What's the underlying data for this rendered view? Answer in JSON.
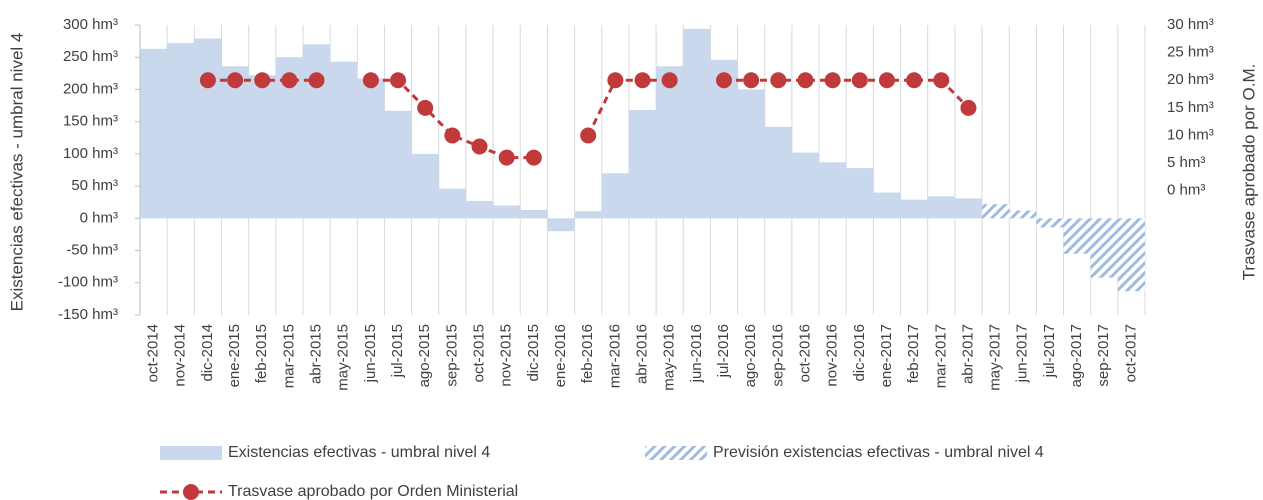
{
  "chart_data": {
    "type": "bar_line",
    "y_label": "Existencias efectivas - umbral nivel 4",
    "y2_label": "Trasvase aprobado por O.M.",
    "categories": [
      "oct-2014",
      "nov-2014",
      "dic-2014",
      "ene-2015",
      "feb-2015",
      "mar-2015",
      "abr-2015",
      "may-2015",
      "jun-2015",
      "jul-2015",
      "ago-2015",
      "sep-2015",
      "oct-2015",
      "nov-2015",
      "dic-2015",
      "ene-2016",
      "feb-2016",
      "mar-2016",
      "abr-2016",
      "may-2016",
      "jun-2016",
      "jul-2016",
      "ago-2016",
      "sep-2016",
      "oct-2016",
      "nov-2016",
      "dic-2016",
      "ene-2017",
      "feb-2017",
      "mar-2017",
      "abr-2017",
      "may-2017",
      "jun-2017",
      "jul-2017",
      "ago-2017",
      "sep-2017",
      "oct-2017"
    ],
    "series": [
      {
        "name": "Existencias efectivas - umbral nivel 4",
        "color": "#c9d8ec",
        "style": "solid",
        "values": [
          263,
          272,
          279,
          236,
          222,
          250,
          270,
          243,
          217,
          167,
          100,
          46,
          27,
          20,
          13,
          -20,
          11,
          70,
          168,
          236,
          294,
          246,
          200,
          142,
          102,
          87,
          78,
          40,
          29,
          34,
          31,
          null,
          null,
          null,
          null,
          null,
          null
        ]
      },
      {
        "name": "Previsión existencias efectivas - umbral nivel 4",
        "color": "#9fbbdf",
        "style": "hatched",
        "values": [
          null,
          null,
          null,
          null,
          null,
          null,
          null,
          null,
          null,
          null,
          null,
          null,
          null,
          null,
          null,
          null,
          null,
          null,
          null,
          null,
          null,
          null,
          null,
          null,
          null,
          null,
          null,
          null,
          null,
          null,
          null,
          22,
          12,
          -14,
          -55,
          -92,
          -113
        ]
      },
      {
        "name": "Trasvase aprobado por Orden Ministerial",
        "color": "#c0393b",
        "type": "line",
        "axis": "y2",
        "values": [
          null,
          null,
          20,
          20,
          20,
          20,
          20,
          null,
          20,
          20,
          15,
          10,
          8,
          6,
          6,
          null,
          10,
          20,
          20,
          20,
          null,
          20,
          20,
          20,
          20,
          20,
          20,
          20,
          20,
          20,
          15,
          null,
          null,
          null,
          null,
          null,
          null
        ]
      }
    ],
    "ylim": [
      -150,
      300
    ],
    "yticks": [
      {
        "value": -150,
        "label": "-150 hm³"
      },
      {
        "value": -100,
        "label": "-100 hm³"
      },
      {
        "value": -50,
        "label": "-50 hm³"
      },
      {
        "value": 0,
        "label": "0 hm³"
      },
      {
        "value": 50,
        "label": "50 hm³"
      },
      {
        "value": 100,
        "label": "100 hm³"
      },
      {
        "value": 150,
        "label": "150 hm³"
      },
      {
        "value": 200,
        "label": "200 hm³"
      },
      {
        "value": 250,
        "label": "250 hm³"
      },
      {
        "value": 300,
        "label": "300 hm³"
      }
    ],
    "y2lim": [
      -22.5,
      30
    ],
    "y2ticks": [
      {
        "value": 0,
        "label": "0 hm³"
      },
      {
        "value": 5,
        "label": "5 hm³"
      },
      {
        "value": 10,
        "label": "10 hm³"
      },
      {
        "value": 15,
        "label": "15 hm³"
      },
      {
        "value": 20,
        "label": "20 hm³"
      },
      {
        "value": 25,
        "label": "25 hm³"
      },
      {
        "value": 30,
        "label": "30 hm³"
      }
    ]
  }
}
